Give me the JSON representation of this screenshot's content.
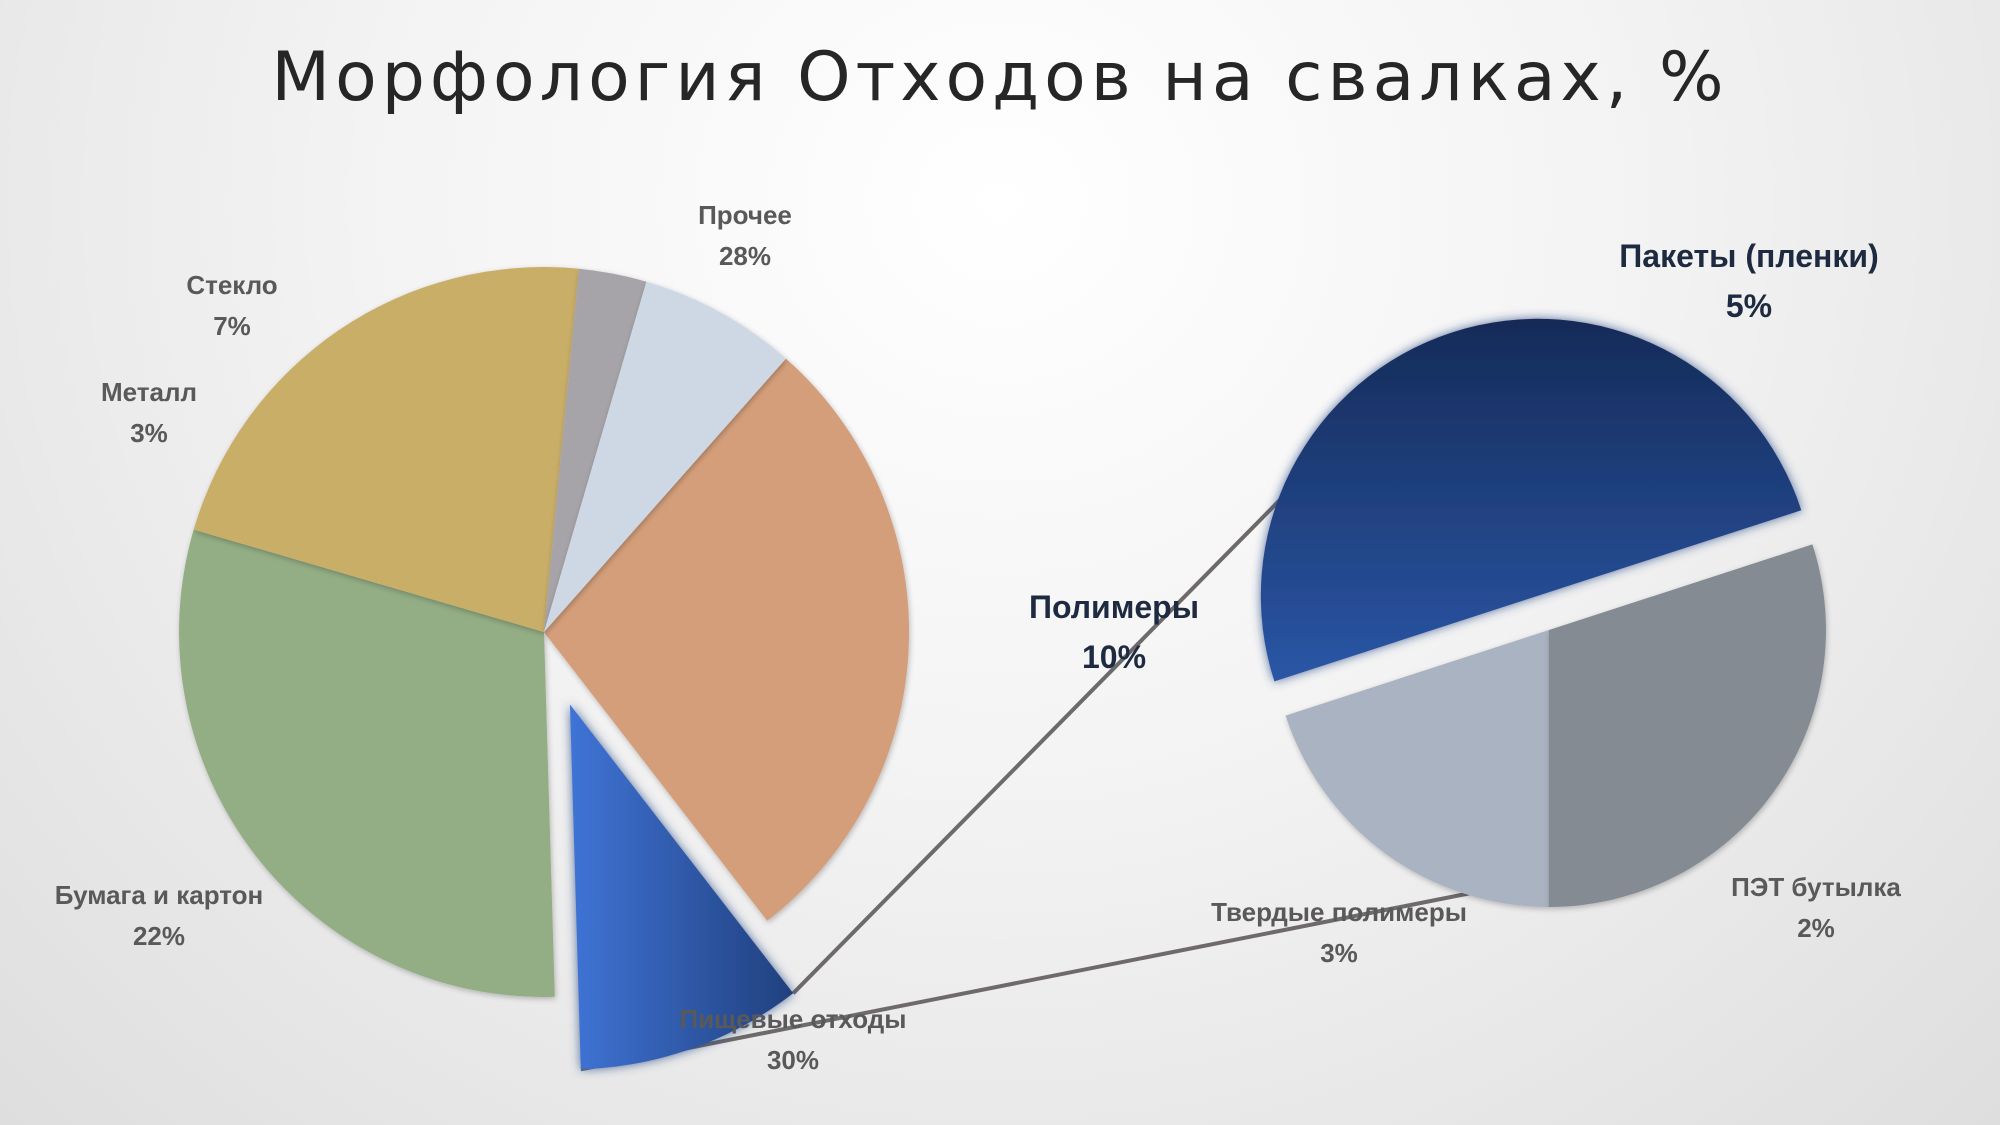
{
  "chart_data": {
    "type": "pie",
    "subtype": "bar-of-pie",
    "title": "Морфология Отходов на свалках, %",
    "primary": {
      "slices": [
        {
          "label": "Прочее",
          "value": 28,
          "value_label": "28%",
          "color": "#d49e7a"
        },
        {
          "label": "Полимеры",
          "value": 10,
          "value_label": "10%",
          "color": "#2f5aa8",
          "exploded": true
        },
        {
          "label": "Пищевые отходы",
          "value": 30,
          "value_label": "30%",
          "color": "#93ad84"
        },
        {
          "label": "Бумага и картон",
          "value": 22,
          "value_label": "22%",
          "color": "#c9ae68"
        },
        {
          "label": "Металл",
          "value": 3,
          "value_label": "3%",
          "color": "#a6a4a8"
        },
        {
          "label": "Стекло",
          "value": 7,
          "value_label": "7%",
          "color": "#cdd8e4"
        }
      ]
    },
    "secondary": {
      "breakdown_of": "Полимеры",
      "slices": [
        {
          "label": "Пакеты (пленки)",
          "value": 5,
          "value_label": "5%",
          "color": "#1f3f7e",
          "exploded": true
        },
        {
          "label": "ПЭТ бутылка",
          "value": 2,
          "value_label": "2%",
          "color": "#a9b3c1"
        },
        {
          "label": "Твердые полимеры",
          "value": 3,
          "value_label": "3%",
          "color": "#858b93"
        }
      ]
    },
    "legend": "none",
    "data_labels": "outside"
  }
}
